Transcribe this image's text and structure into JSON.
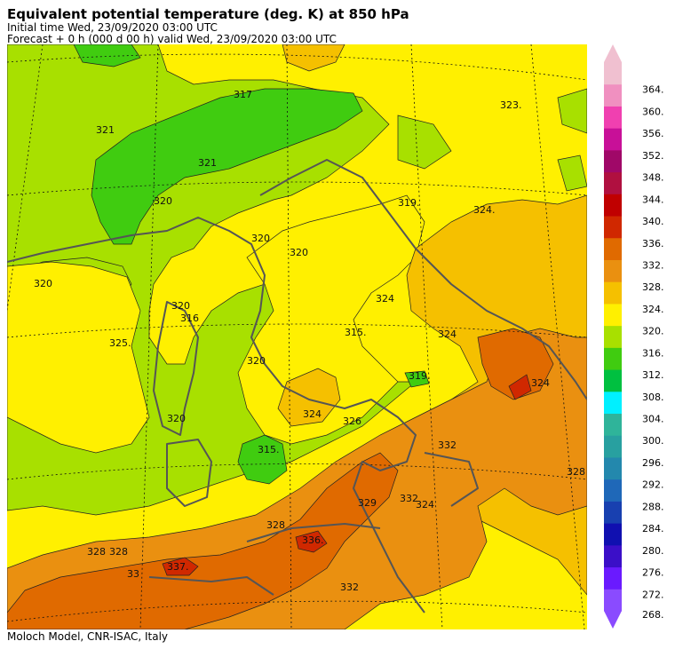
{
  "header": {
    "title": "Equivalent potential temperature (deg. K) at 850 hPa",
    "initial_time": "Initial time  Wed, 23/09/2020  03:00 UTC",
    "forecast": "Forecast  +    0 h  (000 d 00 h)  valid Wed, 23/09/2020 03:00 UTC"
  },
  "footer": {
    "credit": "Moloch Model, CNR-ISAC, Italy"
  },
  "legend": {
    "levels": [
      "268.",
      "272.",
      "276.",
      "280.",
      "284.",
      "288.",
      "292.",
      "296.",
      "300.",
      "304.",
      "308.",
      "312.",
      "316.",
      "320.",
      "324.",
      "328.",
      "332.",
      "336.",
      "340.",
      "344.",
      "348.",
      "352.",
      "356.",
      "360.",
      "364."
    ],
    "colors": [
      "#8a4bff",
      "#6a1aff",
      "#3b0fc8",
      "#1010b0",
      "#1840b0",
      "#1f68b8",
      "#2388ad",
      "#28a0a0",
      "#2fb49a",
      "#00f0ff",
      "#00c040",
      "#40cc10",
      "#a8e000",
      "#fff000",
      "#f5c000",
      "#ea9010",
      "#e06a00",
      "#d02800",
      "#c00000",
      "#b01040",
      "#a00868",
      "#c81098",
      "#f040b0",
      "#f090c0",
      "#f0c0d0"
    ]
  },
  "contour_labels": [
    "321",
    "317",
    "321",
    "320",
    "320",
    "320",
    "320",
    "325.",
    "320",
    "316",
    "315.",
    "320",
    "320",
    "324",
    "326",
    "315.",
    "319.",
    "319.",
    "323.",
    "324.",
    "324",
    "324",
    "332",
    "324",
    "328",
    "332",
    "329",
    "324",
    "328",
    "336.",
    "337.",
    "332",
    "328",
    "33",
    "328"
  ],
  "colors": {
    "green": "#a8e000",
    "dark_green": "#40cc10",
    "yellow": "#fff000",
    "gold": "#f5c000",
    "orange": "#ea9010",
    "red_orange": "#e06a00",
    "red": "#d02800"
  }
}
